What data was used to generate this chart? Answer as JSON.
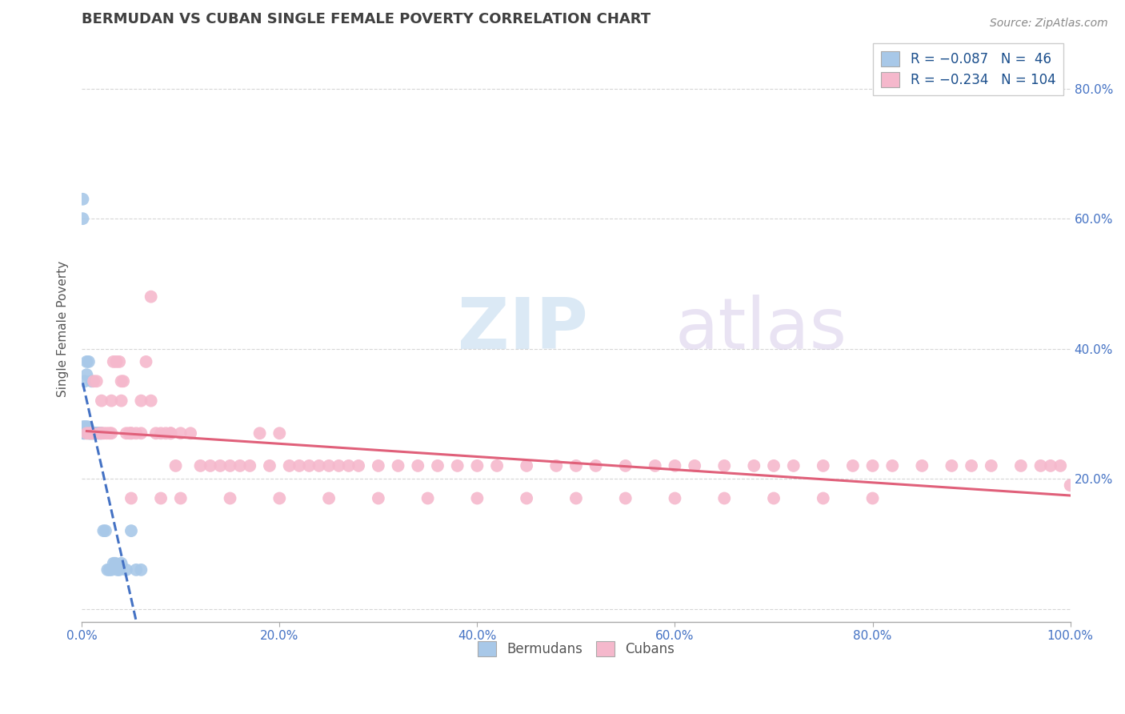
{
  "title": "BERMUDAN VS CUBAN SINGLE FEMALE POVERTY CORRELATION CHART",
  "source_text": "Source: ZipAtlas.com",
  "ylabel": "Single Female Poverty",
  "r_bermudan": -0.087,
  "n_bermudan": 46,
  "r_cuban": -0.234,
  "n_cuban": 104,
  "bermudan_color": "#a8c8e8",
  "cuban_color": "#f5b8cc",
  "bermudan_line_color": "#4472C4",
  "cuban_line_color": "#e0607a",
  "background_color": "#ffffff",
  "grid_color": "#cccccc",
  "title_color": "#404040",
  "watermark_zip": "ZIP",
  "watermark_atlas": "atlas",
  "xlim": [
    0.0,
    1.0
  ],
  "ylim": [
    -0.02,
    0.88
  ],
  "bermudan_x": [
    0.001,
    0.001,
    0.001,
    0.002,
    0.002,
    0.003,
    0.003,
    0.004,
    0.004,
    0.005,
    0.005,
    0.006,
    0.006,
    0.007,
    0.007,
    0.008,
    0.008,
    0.009,
    0.009,
    0.01,
    0.01,
    0.011,
    0.011,
    0.012,
    0.013,
    0.014,
    0.015,
    0.016,
    0.017,
    0.018,
    0.019,
    0.02,
    0.022,
    0.024,
    0.026,
    0.028,
    0.03,
    0.032,
    0.034,
    0.036,
    0.038,
    0.04,
    0.045,
    0.05,
    0.055,
    0.06
  ],
  "bermudan_y": [
    0.63,
    0.6,
    0.28,
    0.27,
    0.27,
    0.35,
    0.28,
    0.28,
    0.27,
    0.38,
    0.36,
    0.28,
    0.27,
    0.38,
    0.27,
    0.27,
    0.27,
    0.27,
    0.27,
    0.35,
    0.27,
    0.27,
    0.27,
    0.27,
    0.27,
    0.27,
    0.27,
    0.27,
    0.27,
    0.27,
    0.27,
    0.27,
    0.12,
    0.12,
    0.06,
    0.06,
    0.06,
    0.07,
    0.07,
    0.06,
    0.06,
    0.07,
    0.06,
    0.12,
    0.06,
    0.06
  ],
  "cuban_x": [
    0.005,
    0.008,
    0.01,
    0.012,
    0.015,
    0.018,
    0.02,
    0.022,
    0.025,
    0.028,
    0.03,
    0.032,
    0.035,
    0.038,
    0.04,
    0.042,
    0.045,
    0.048,
    0.05,
    0.055,
    0.06,
    0.065,
    0.07,
    0.075,
    0.08,
    0.085,
    0.09,
    0.095,
    0.1,
    0.11,
    0.12,
    0.13,
    0.14,
    0.15,
    0.16,
    0.17,
    0.18,
    0.19,
    0.2,
    0.21,
    0.22,
    0.23,
    0.24,
    0.25,
    0.26,
    0.27,
    0.28,
    0.3,
    0.32,
    0.34,
    0.36,
    0.38,
    0.4,
    0.42,
    0.45,
    0.48,
    0.5,
    0.52,
    0.55,
    0.58,
    0.6,
    0.62,
    0.65,
    0.68,
    0.7,
    0.72,
    0.75,
    0.78,
    0.8,
    0.82,
    0.85,
    0.88,
    0.9,
    0.92,
    0.95,
    0.97,
    0.98,
    0.99,
    1.0,
    0.05,
    0.08,
    0.1,
    0.15,
    0.2,
    0.25,
    0.3,
    0.35,
    0.4,
    0.45,
    0.5,
    0.55,
    0.6,
    0.65,
    0.7,
    0.75,
    0.8,
    0.05,
    0.01,
    0.02,
    0.03,
    0.04,
    0.06,
    0.07,
    0.09
  ],
  "cuban_y": [
    0.27,
    0.27,
    0.27,
    0.35,
    0.35,
    0.27,
    0.27,
    0.27,
    0.27,
    0.27,
    0.27,
    0.38,
    0.38,
    0.38,
    0.35,
    0.35,
    0.27,
    0.27,
    0.27,
    0.27,
    0.27,
    0.38,
    0.48,
    0.27,
    0.27,
    0.27,
    0.27,
    0.22,
    0.27,
    0.27,
    0.22,
    0.22,
    0.22,
    0.22,
    0.22,
    0.22,
    0.27,
    0.22,
    0.27,
    0.22,
    0.22,
    0.22,
    0.22,
    0.22,
    0.22,
    0.22,
    0.22,
    0.22,
    0.22,
    0.22,
    0.22,
    0.22,
    0.22,
    0.22,
    0.22,
    0.22,
    0.22,
    0.22,
    0.22,
    0.22,
    0.22,
    0.22,
    0.22,
    0.22,
    0.22,
    0.22,
    0.22,
    0.22,
    0.22,
    0.22,
    0.22,
    0.22,
    0.22,
    0.22,
    0.22,
    0.22,
    0.22,
    0.22,
    0.19,
    0.17,
    0.17,
    0.17,
    0.17,
    0.17,
    0.17,
    0.17,
    0.17,
    0.17,
    0.17,
    0.17,
    0.17,
    0.17,
    0.17,
    0.17,
    0.17,
    0.17,
    0.27,
    0.27,
    0.32,
    0.32,
    0.32,
    0.32,
    0.32,
    0.27
  ],
  "xtick_positions": [
    0.0,
    0.2,
    0.4,
    0.6,
    0.8,
    1.0
  ],
  "xtick_labels": [
    "0.0%",
    "20.0%",
    "40.0%",
    "60.0%",
    "80.0%",
    "100.0%"
  ],
  "ytick_positions": [
    0.0,
    0.2,
    0.4,
    0.6,
    0.8
  ],
  "right_ytick_positions": [
    0.2,
    0.4,
    0.6,
    0.8
  ],
  "right_ytick_labels": [
    "20.0%",
    "40.0%",
    "60.0%",
    "80.0%"
  ],
  "legend_top_labels": [
    "R = -0.087   N =  46",
    "R = -0.234   N = 104"
  ]
}
